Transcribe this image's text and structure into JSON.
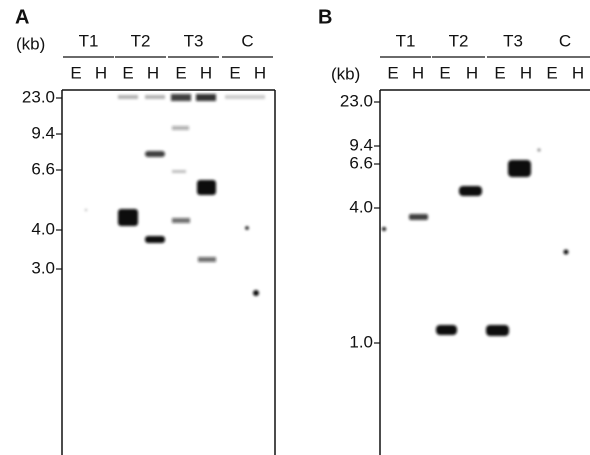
{
  "panels": [
    {
      "label": "A",
      "unit": "(kb)",
      "groups": [
        {
          "name": "T1",
          "lanes": [
            "E",
            "H"
          ]
        },
        {
          "name": "T2",
          "lanes": [
            "E",
            "H"
          ]
        },
        {
          "name": "T3",
          "lanes": [
            "E",
            "H"
          ]
        },
        {
          "name": "C",
          "lanes": [
            "E",
            "H"
          ]
        }
      ],
      "markers": [
        "23.0",
        "9.4",
        "6.6",
        "4.0",
        "3.0"
      ]
    },
    {
      "label": "B",
      "unit": "(kb)",
      "groups": [
        {
          "name": "T1",
          "lanes": [
            "E",
            "H"
          ]
        },
        {
          "name": "T2",
          "lanes": [
            "E",
            "H"
          ]
        },
        {
          "name": "T3",
          "lanes": [
            "E",
            "H"
          ]
        },
        {
          "name": "C",
          "lanes": [
            "E",
            "H"
          ]
        }
      ],
      "markers": [
        "23.0",
        "9.4",
        "6.6",
        "4.0",
        "1.0"
      ]
    }
  ]
}
